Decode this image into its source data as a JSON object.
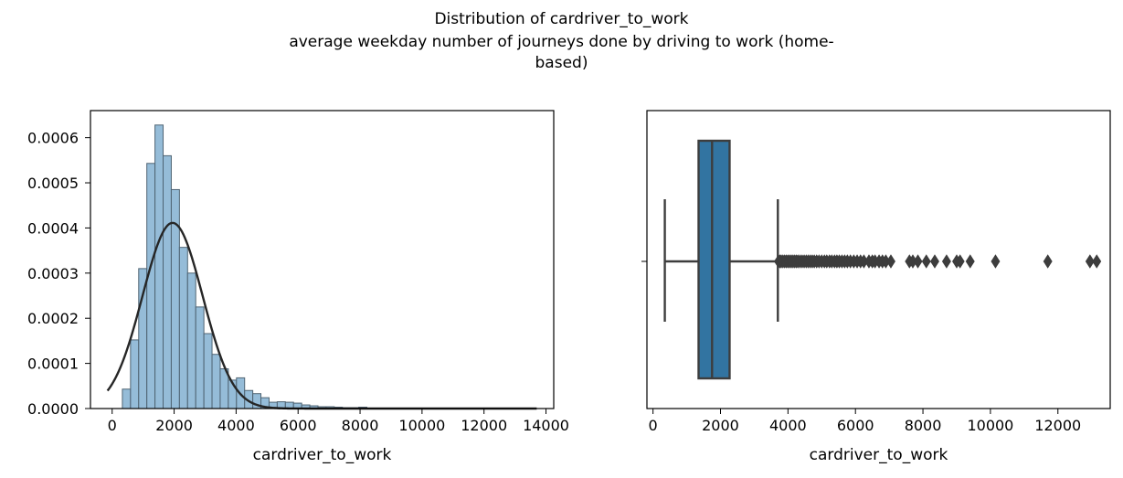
{
  "figure": {
    "title_lines": [
      "Distribution of cardriver_to_work",
      "average weekday number of journeys done by driving to work (home-",
      "based)"
    ]
  },
  "chart_data": [
    {
      "type": "histogram",
      "xlabel": "cardriver_to_work",
      "ylabel": "",
      "xlim": [
        -700,
        14250
      ],
      "ylim": [
        0,
        0.00066
      ],
      "xticks": [
        0,
        2000,
        4000,
        6000,
        8000,
        10000,
        12000,
        14000
      ],
      "xtick_labels": [
        "0",
        "2000",
        "4000",
        "6000",
        "8000",
        "10000",
        "12000",
        "14000"
      ],
      "yticks": [
        0,
        0.0001,
        0.0002,
        0.0003,
        0.0004,
        0.0005,
        0.0006
      ],
      "ytick_labels": [
        "0.0000",
        "0.0001",
        "0.0002",
        "0.0003",
        "0.0004",
        "0.0005",
        "0.0006"
      ],
      "bar_color": "#8fb8d6",
      "bin_width": 263,
      "bin_starts": [
        330,
        593,
        856,
        1119,
        1382,
        1645,
        1908,
        2171,
        2434,
        2697,
        2960,
        3223,
        3486,
        3749,
        4012,
        4275,
        4538,
        4801,
        5064,
        5327,
        5590,
        5853,
        6116,
        6379,
        6642,
        6905,
        7168,
        7431,
        7694,
        7957
      ],
      "values": [
        4.3e-05,
        0.000152,
        0.00031,
        0.000543,
        0.000628,
        0.00056,
        0.000485,
        0.000357,
        0.0003,
        0.000225,
        0.000166,
        0.00012,
        8.8e-05,
        6.3e-05,
        6.8e-05,
        4e-05,
        3.3e-05,
        2.4e-05,
        1.4e-05,
        1.5e-05,
        1.4e-05,
        1.2e-05,
        8e-06,
        6e-06,
        4e-06,
        4e-06,
        3e-06,
        2e-06,
        2e-06,
        3e-06
      ],
      "fit_curve": {
        "type": "normal",
        "mean": 1950,
        "std": 970,
        "x_range": [
          -150,
          13700
        ],
        "color": "#262626"
      }
    },
    {
      "type": "boxplot",
      "xlabel": "cardriver_to_work",
      "xlim": [
        -180,
        13550
      ],
      "xticks": [
        0,
        2000,
        4000,
        6000,
        8000,
        10000,
        12000
      ],
      "xtick_labels": [
        "0",
        "2000",
        "4000",
        "6000",
        "8000",
        "10000",
        "12000"
      ],
      "box_color": "#3274a1",
      "line_color": "#3d3d3d",
      "whisker_low": 350,
      "q1": 1350,
      "median": 1750,
      "q3": 2270,
      "whisker_high": 3700,
      "outliers": [
        3720,
        3760,
        3800,
        3850,
        3900,
        3950,
        4000,
        4050,
        4100,
        4150,
        4200,
        4250,
        4300,
        4360,
        4420,
        4480,
        4540,
        4600,
        4660,
        4720,
        4780,
        4850,
        4920,
        5000,
        5080,
        5150,
        5230,
        5300,
        5380,
        5450,
        5520,
        5600,
        5680,
        5760,
        5850,
        5950,
        6050,
        6150,
        6250,
        6400,
        6500,
        6580,
        6700,
        6800,
        6900,
        7050,
        7600,
        7700,
        7850,
        8100,
        8350,
        8700,
        9000,
        9100,
        9400,
        10150,
        11700,
        12950,
        13150
      ]
    }
  ]
}
